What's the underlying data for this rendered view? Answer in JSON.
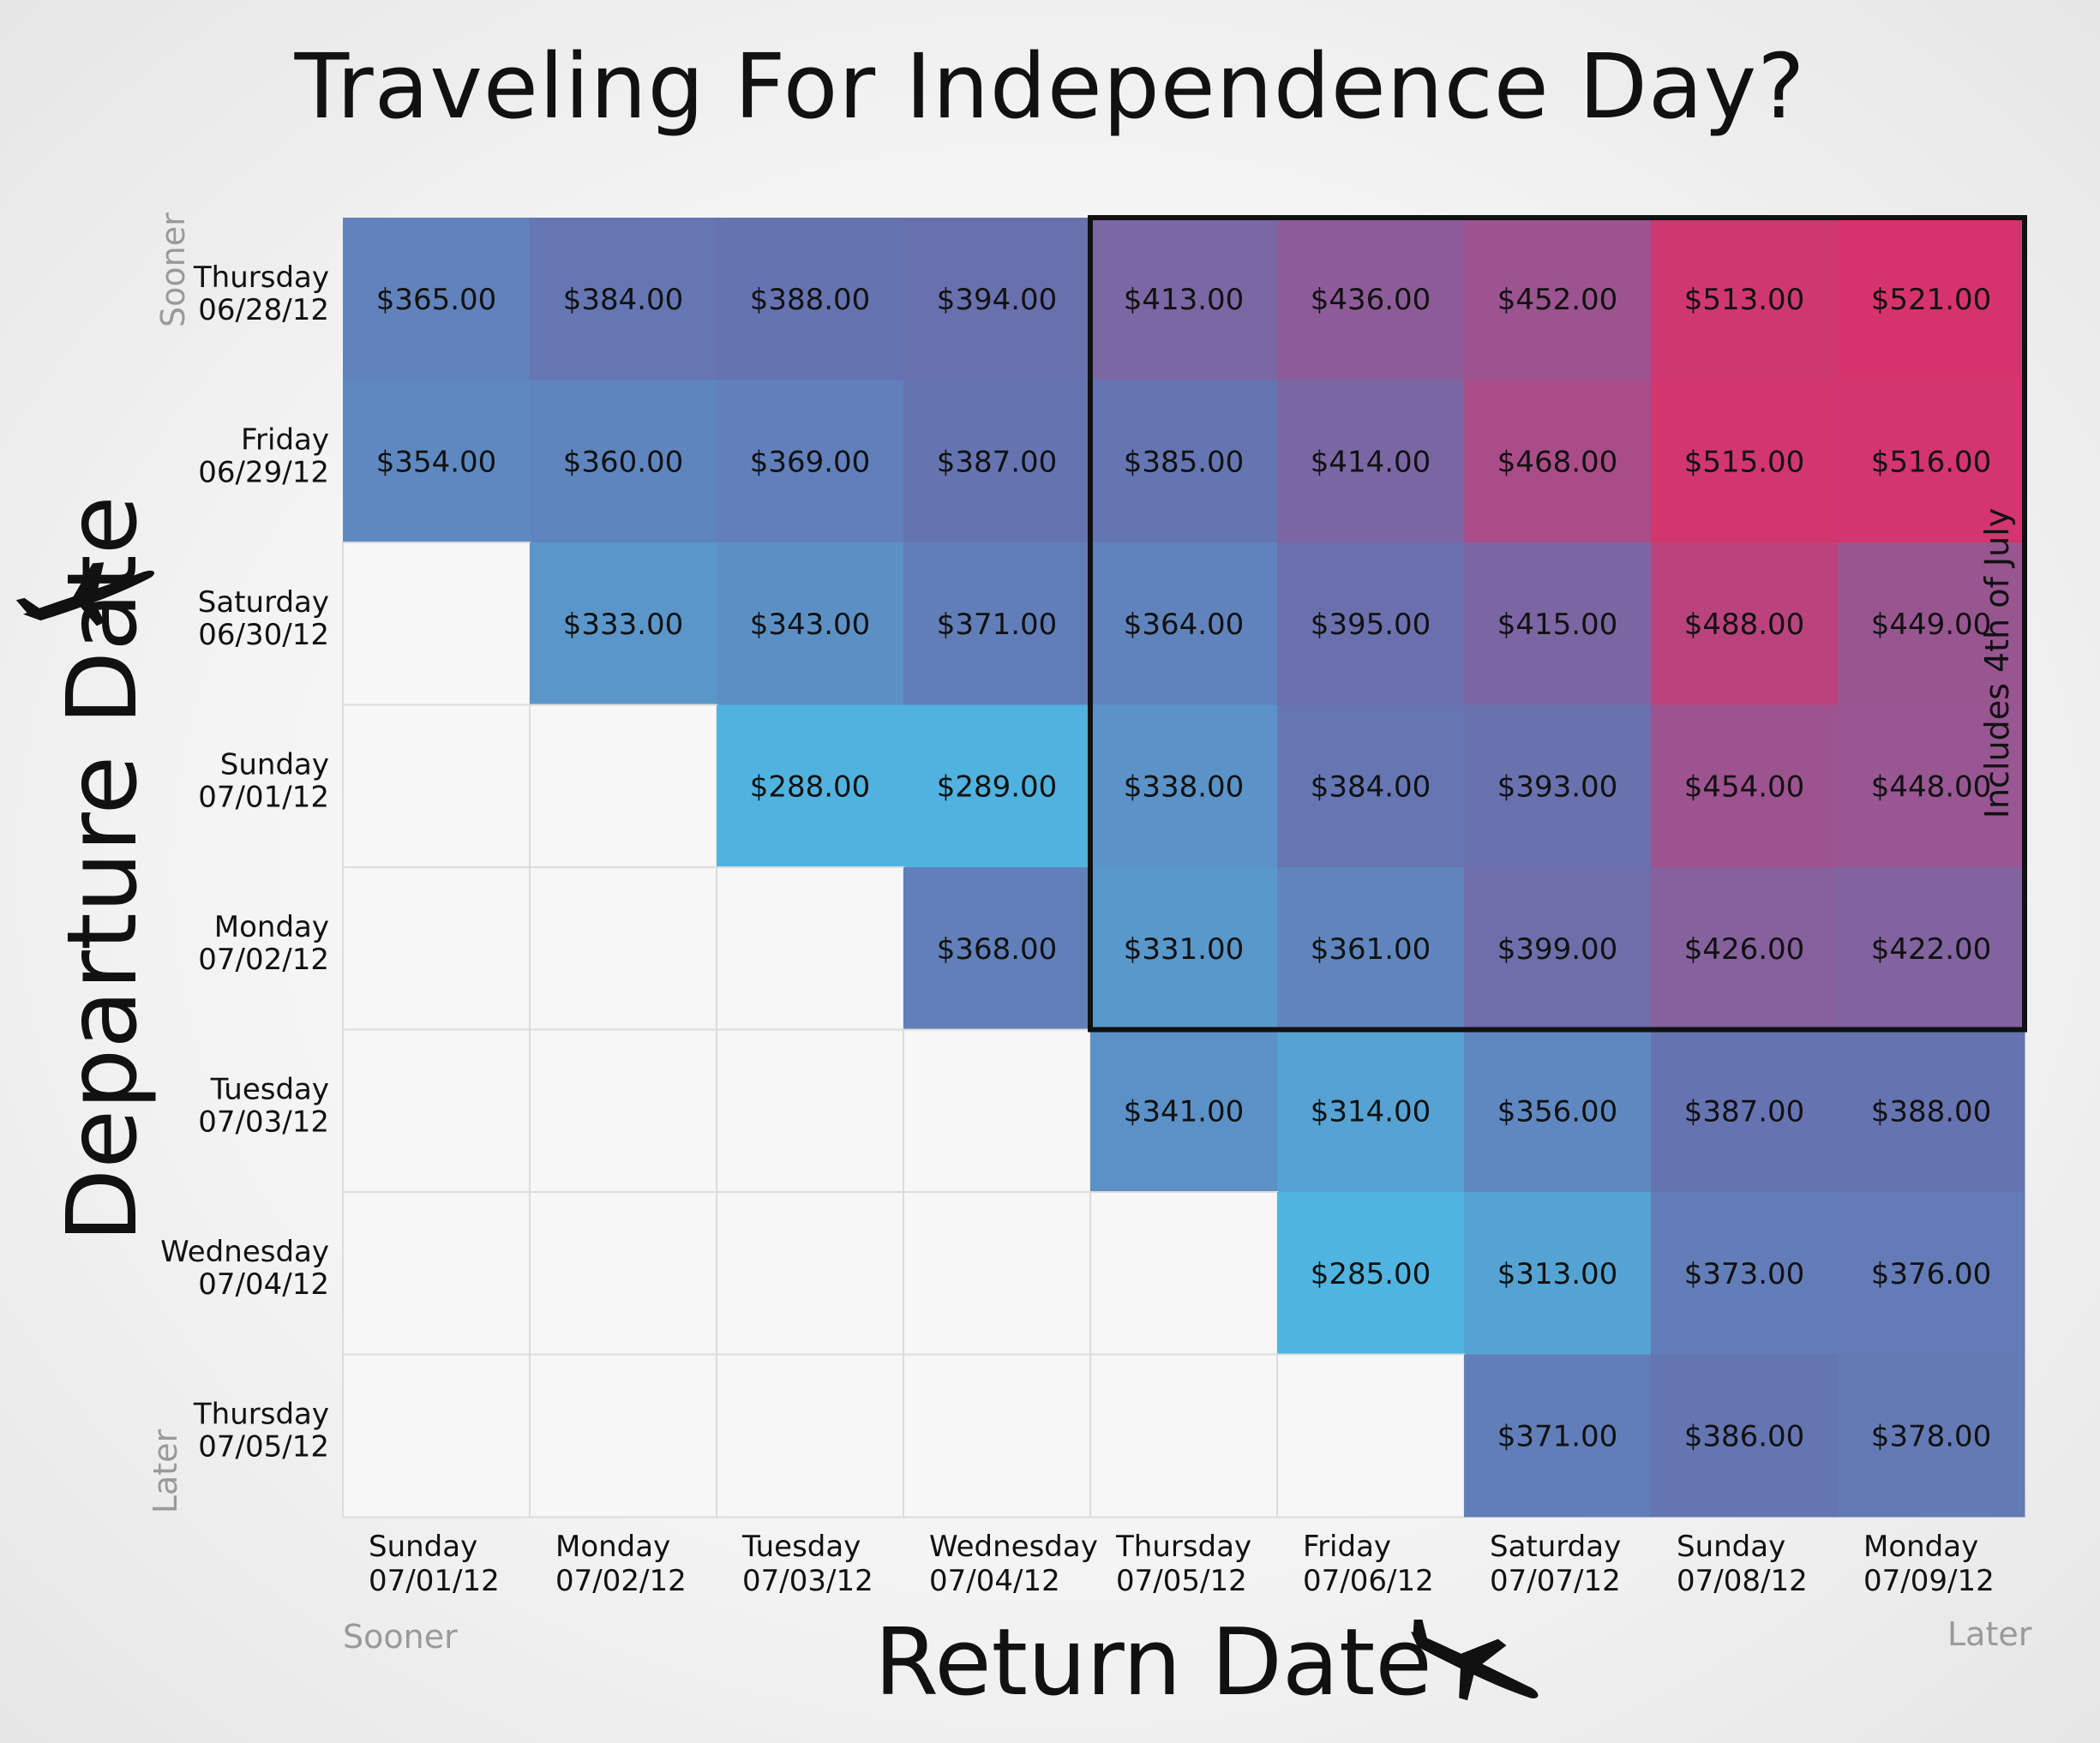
{
  "title": "Traveling For Independence Day?",
  "axis": {
    "ylabel": "Departure Date",
    "xlabel": "Return Date",
    "y_start_word": "Sooner",
    "y_end_word": "Later",
    "x_start_word": "Sooner",
    "x_end_word": "Later"
  },
  "highlight_label": "Includes 4th of July",
  "icons": {
    "departure": "plane-takeoff-icon",
    "return": "plane-landing-icon"
  },
  "colors": {
    "low": "#4fb5e0",
    "mid": "#6672b0",
    "high": "#d6336c",
    "empty": "#f7f7f7"
  },
  "chart_data": {
    "type": "heatmap",
    "title": "Traveling For Independence Day?",
    "xlabel": "Return Date",
    "ylabel": "Departure Date",
    "x_categories": [
      [
        "Sunday",
        "07/01/12"
      ],
      [
        "Monday",
        "07/02/12"
      ],
      [
        "Tuesday",
        "07/03/12"
      ],
      [
        "Wednesday",
        "07/04/12"
      ],
      [
        "Thursday",
        "07/05/12"
      ],
      [
        "Friday",
        "07/06/12"
      ],
      [
        "Saturday",
        "07/07/12"
      ],
      [
        "Sunday",
        "07/08/12"
      ],
      [
        "Monday",
        "07/09/12"
      ]
    ],
    "y_categories": [
      [
        "Thursday",
        "06/28/12"
      ],
      [
        "Friday",
        "06/29/12"
      ],
      [
        "Saturday",
        "06/30/12"
      ],
      [
        "Sunday",
        "07/01/12"
      ],
      [
        "Monday",
        "07/02/12"
      ],
      [
        "Tuesday",
        "07/03/12"
      ],
      [
        "Wednesday",
        "07/04/12"
      ],
      [
        "Thursday",
        "07/05/12"
      ]
    ],
    "values": [
      [
        365,
        384,
        388,
        394,
        413,
        436,
        452,
        513,
        521
      ],
      [
        354,
        360,
        369,
        387,
        385,
        414,
        468,
        515,
        516
      ],
      [
        null,
        333,
        343,
        371,
        364,
        395,
        415,
        488,
        449
      ],
      [
        null,
        null,
        288,
        289,
        338,
        384,
        393,
        454,
        448
      ],
      [
        null,
        null,
        null,
        368,
        331,
        361,
        399,
        426,
        422
      ],
      [
        null,
        null,
        null,
        null,
        341,
        314,
        356,
        387,
        388
      ],
      [
        null,
        null,
        null,
        null,
        null,
        285,
        313,
        373,
        376
      ],
      [
        null,
        null,
        null,
        null,
        null,
        null,
        371,
        386,
        378
      ]
    ],
    "value_format": "$%.2f",
    "highlight_box": {
      "rows": [
        0,
        4
      ],
      "cols": [
        4,
        8
      ],
      "label": "Includes 4th of July"
    }
  }
}
